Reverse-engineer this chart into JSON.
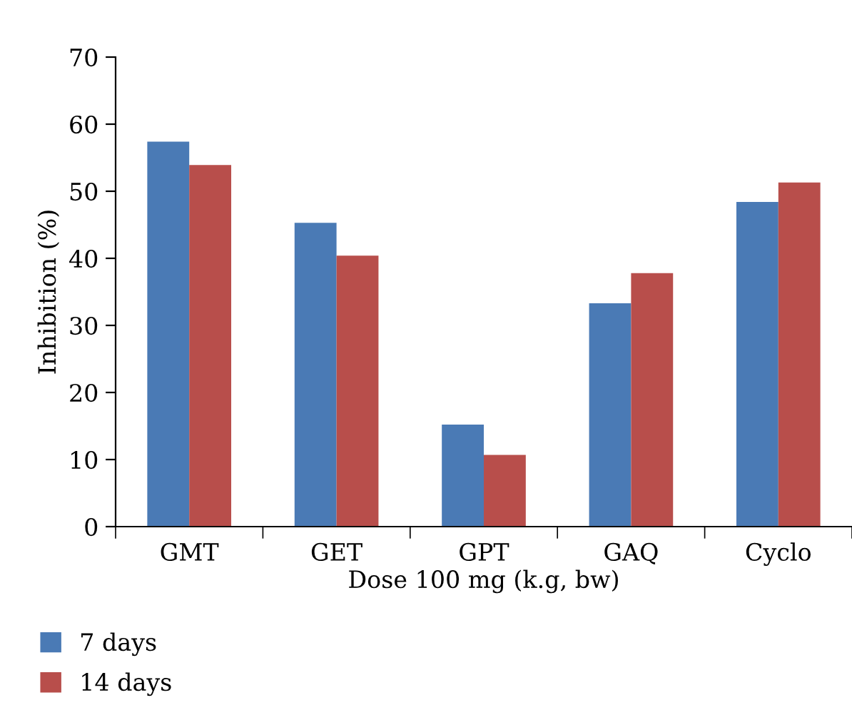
{
  "chart_data": {
    "type": "bar",
    "xlabel": "Dose 100 mg (k.g, bw)",
    "ylabel": "Inhibition (%)",
    "categories": [
      "GMT",
      "GET",
      "GPT",
      "GAQ",
      "Cyclo"
    ],
    "series": [
      {
        "name": "7 days",
        "color": "#4a7ab5",
        "values": [
          57.4,
          45.3,
          15.2,
          33.3,
          48.4
        ]
      },
      {
        "name": "14 days",
        "color": "#b84e4b",
        "values": [
          53.9,
          40.4,
          10.7,
          37.8,
          51.3
        ]
      }
    ],
    "ylim": [
      0,
      70
    ],
    "yticks": [
      0,
      10,
      20,
      30,
      40,
      50,
      60,
      70
    ],
    "grid": false,
    "legend": "bottom left"
  }
}
